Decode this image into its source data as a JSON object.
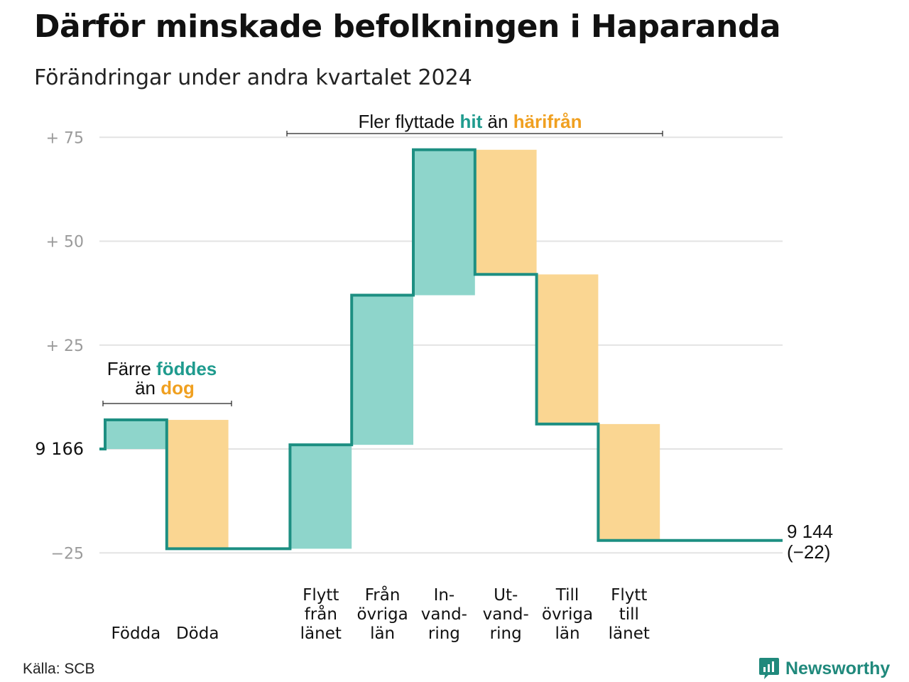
{
  "header": {
    "title": "Därför minskade befolkningen i Haparanda",
    "subtitle": "Förändringar under andra kvartalet 2024"
  },
  "annotations": {
    "births": {
      "line1_a": "Färre ",
      "line1_b": "föddes",
      "line2_a": "än ",
      "line2_b": "dog"
    },
    "moves": {
      "part1": "Fler flyttade ",
      "part2": "hit",
      "part3": " än ",
      "part4": "härifrån"
    }
  },
  "end_label": {
    "value": "9 144",
    "change": "(−22)"
  },
  "footer": {
    "source": "Källa: SCB",
    "logo": "Newsworthy"
  },
  "colors": {
    "inflow": "#8ed5cb",
    "outflow": "#fad692",
    "line": "#1d8f82",
    "grid": "#e3e3e3",
    "tick": "#9a9a9a",
    "highlight_teal": "#1f9b8e",
    "highlight_orange": "#f0a020"
  },
  "chart_data": {
    "type": "waterfall",
    "start_value": 9166,
    "end_value": 9144,
    "change": -22,
    "y_ticks": [
      {
        "value": -25,
        "label": "−25"
      },
      {
        "value": 0,
        "label": "9 166"
      },
      {
        "value": 25,
        "label": "+ 25"
      },
      {
        "value": 50,
        "label": "+ 50"
      },
      {
        "value": 75,
        "label": "+ 75"
      }
    ],
    "ylim": [
      -25,
      75
    ],
    "steps": [
      {
        "label": [
          "Födda"
        ],
        "delta": 7,
        "kind": "in"
      },
      {
        "label": [
          "Döda"
        ],
        "delta": -31,
        "kind": "out"
      },
      {
        "label": [],
        "delta": 0,
        "kind": "gap"
      },
      {
        "label": [
          "Flytt",
          "från",
          "länet"
        ],
        "delta": 25,
        "kind": "in"
      },
      {
        "label": [
          "Från",
          "övriga",
          "län"
        ],
        "delta": 36,
        "kind": "in"
      },
      {
        "label": [
          "In-",
          "vand-",
          "ring"
        ],
        "delta": 35,
        "kind": "in"
      },
      {
        "label": [
          "Ut-",
          "vand-",
          "ring"
        ],
        "delta": -30,
        "kind": "out"
      },
      {
        "label": [
          "Till",
          "övriga",
          "län"
        ],
        "delta": -36,
        "kind": "out"
      },
      {
        "label": [
          "Flytt",
          "till",
          "länet"
        ],
        "delta": -28,
        "kind": "out"
      }
    ]
  }
}
